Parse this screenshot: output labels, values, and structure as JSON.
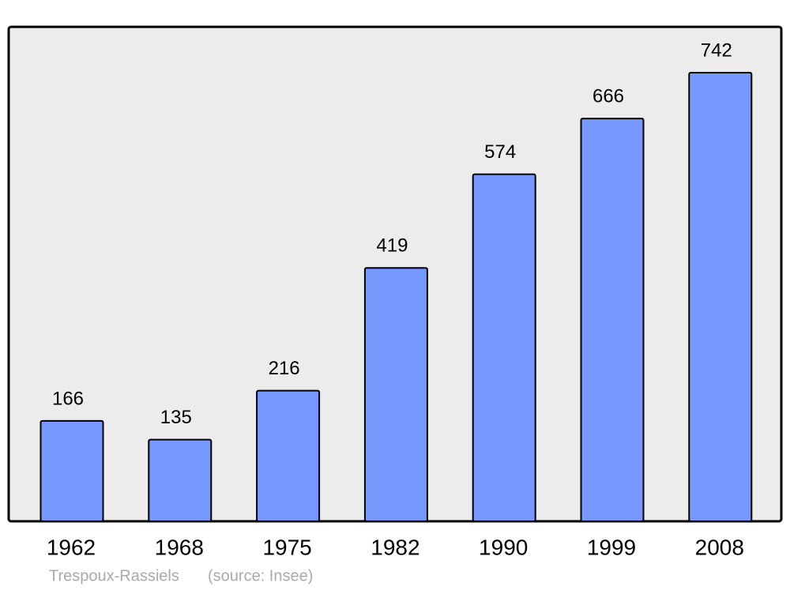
{
  "chart_data": {
    "type": "bar",
    "title": "Trespoux-Rassiels",
    "source": "(source: Insee)",
    "categories": [
      "1962",
      "1968",
      "1975",
      "1982",
      "1990",
      "1999",
      "2008"
    ],
    "values": [
      166,
      135,
      216,
      419,
      574,
      666,
      742
    ],
    "color": "#7799ff"
  }
}
